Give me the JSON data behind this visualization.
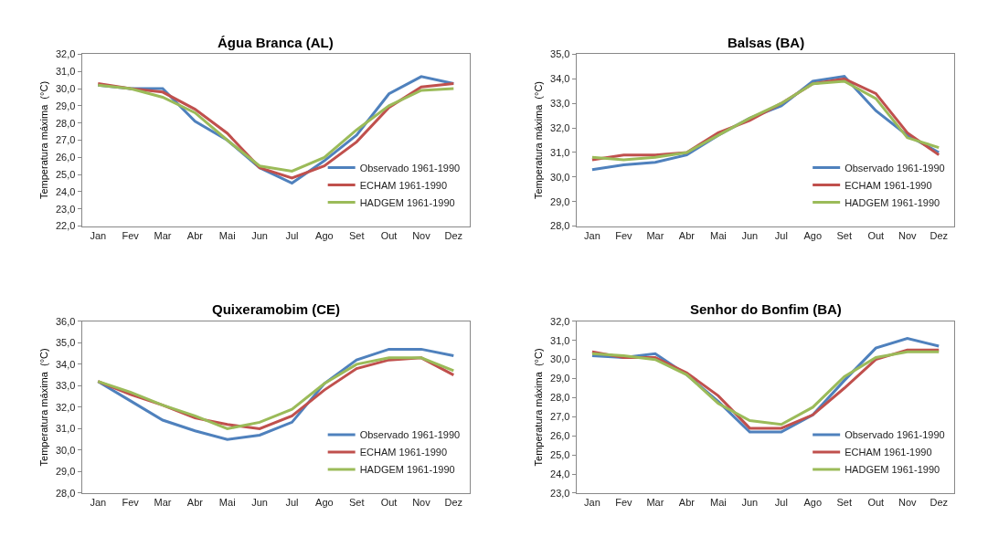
{
  "chart_data": [
    {
      "type": "line",
      "title": "Água Branca (AL)",
      "ylabel": "Temperatura máxima  (°C)",
      "categories": [
        "Jan",
        "Fev",
        "Mar",
        "Abr",
        "Mai",
        "Jun",
        "Jul",
        "Ago",
        "Set",
        "Out",
        "Nov",
        "Dez"
      ],
      "series": [
        {
          "name": "Observado 1961-1990",
          "color": "#4f81bd",
          "values": [
            30.2,
            30.0,
            30.0,
            28.1,
            27.0,
            25.4,
            24.5,
            25.8,
            27.3,
            29.7,
            30.7,
            30.3
          ]
        },
        {
          "name": "ECHAM 1961-1990",
          "color": "#c0504d",
          "values": [
            30.3,
            30.0,
            29.8,
            28.8,
            27.4,
            25.4,
            24.8,
            25.5,
            26.9,
            28.9,
            30.1,
            30.3
          ]
        },
        {
          "name": "HADGEM 1961-1990",
          "color": "#9bbb59",
          "values": [
            30.2,
            30.0,
            29.5,
            28.6,
            27.0,
            25.5,
            25.2,
            26.0,
            27.6,
            29.0,
            29.9,
            30.0
          ]
        }
      ],
      "ylim": [
        22,
        32
      ],
      "yticks": [
        {
          "value": 22,
          "label": "22,0"
        },
        {
          "value": 23,
          "label": "23,0"
        },
        {
          "value": 24,
          "label": "24,0"
        },
        {
          "value": 25,
          "label": "25,0"
        },
        {
          "value": 26,
          "label": "26,0"
        },
        {
          "value": 27,
          "label": "27,0"
        },
        {
          "value": 28,
          "label": "28,0"
        },
        {
          "value": 29,
          "label": "29,0"
        },
        {
          "value": 30,
          "label": "30,0"
        },
        {
          "value": 31,
          "label": "31,0"
        },
        {
          "value": 32,
          "label": "32,0"
        }
      ],
      "legend": "bottom right",
      "marker": "none",
      "line_style": "solid"
    },
    {
      "type": "line",
      "title": "Balsas (BA)",
      "ylabel": "Temperatura máxima  (°C)",
      "categories": [
        "Jan",
        "Fev",
        "Mar",
        "Abr",
        "Mai",
        "Jun",
        "Jul",
        "Ago",
        "Set",
        "Out",
        "Nov",
        "Dez"
      ],
      "series": [
        {
          "name": "Observado 1961-1990",
          "color": "#4f81bd",
          "values": [
            30.3,
            30.5,
            30.6,
            30.9,
            31.7,
            32.4,
            32.9,
            33.9,
            34.1,
            32.7,
            31.7,
            31.0
          ]
        },
        {
          "name": "ECHAM 1961-1990",
          "color": "#c0504d",
          "values": [
            30.7,
            30.9,
            30.9,
            31.0,
            31.8,
            32.3,
            33.0,
            33.8,
            34.0,
            33.4,
            31.8,
            30.9
          ]
        },
        {
          "name": "HADGEM 1961-1990",
          "color": "#9bbb59",
          "values": [
            30.8,
            30.7,
            30.8,
            31.0,
            31.7,
            32.4,
            33.0,
            33.8,
            33.9,
            33.2,
            31.6,
            31.2
          ]
        }
      ],
      "ylim": [
        28,
        35
      ],
      "yticks": [
        {
          "value": 28,
          "label": "28,0"
        },
        {
          "value": 29,
          "label": "29,0"
        },
        {
          "value": 30,
          "label": "30,0"
        },
        {
          "value": 31,
          "label": "31,0"
        },
        {
          "value": 32,
          "label": "32,0"
        },
        {
          "value": 33,
          "label": "33,0"
        },
        {
          "value": 34,
          "label": "34,0"
        },
        {
          "value": 35,
          "label": "35,0"
        }
      ],
      "legend": "bottom right",
      "marker": "none",
      "line_style": "solid"
    },
    {
      "type": "line",
      "title": "Quixeramobim (CE)",
      "ylabel": "Temperatura máxima  (°C)",
      "categories": [
        "Jan",
        "Fev",
        "Mar",
        "Abr",
        "Mai",
        "Jun",
        "Jul",
        "Ago",
        "Set",
        "Out",
        "Nov",
        "Dez"
      ],
      "series": [
        {
          "name": "Observado 1961-1990",
          "color": "#4f81bd",
          "values": [
            33.2,
            32.3,
            31.4,
            30.9,
            30.5,
            30.7,
            31.3,
            33.1,
            34.2,
            34.7,
            34.7,
            34.4
          ]
        },
        {
          "name": "ECHAM 1961-1990",
          "color": "#c0504d",
          "values": [
            33.2,
            32.6,
            32.1,
            31.5,
            31.2,
            31.0,
            31.6,
            32.8,
            33.8,
            34.2,
            34.3,
            33.5
          ]
        },
        {
          "name": "HADGEM 1961-1990",
          "color": "#9bbb59",
          "values": [
            33.2,
            32.7,
            32.1,
            31.6,
            31.0,
            31.3,
            31.9,
            33.1,
            34.0,
            34.3,
            34.3,
            33.7
          ]
        }
      ],
      "ylim": [
        28,
        36
      ],
      "yticks": [
        {
          "value": 28,
          "label": "28,0"
        },
        {
          "value": 29,
          "label": "29,0"
        },
        {
          "value": 30,
          "label": "30,0"
        },
        {
          "value": 31,
          "label": "31,0"
        },
        {
          "value": 32,
          "label": "32,0"
        },
        {
          "value": 33,
          "label": "33,0"
        },
        {
          "value": 34,
          "label": "34,0"
        },
        {
          "value": 35,
          "label": "35,0"
        },
        {
          "value": 36,
          "label": "36,0"
        }
      ],
      "legend": "bottom right",
      "marker": "none",
      "line_style": "solid"
    },
    {
      "type": "line",
      "title": "Senhor do Bonfim (BA)",
      "ylabel": "Temperatura máxima  (°C)",
      "categories": [
        "Jan",
        "Fev",
        "Mar",
        "Abr",
        "Mai",
        "Jun",
        "Jul",
        "Ago",
        "Set",
        "Out",
        "Nov",
        "Dez"
      ],
      "series": [
        {
          "name": "Observado 1961-1990",
          "color": "#4f81bd",
          "values": [
            30.2,
            30.1,
            30.3,
            29.2,
            27.8,
            26.2,
            26.2,
            27.1,
            28.9,
            30.6,
            31.1,
            30.7
          ]
        },
        {
          "name": "ECHAM 1961-1990",
          "color": "#c0504d",
          "values": [
            30.4,
            30.1,
            30.1,
            29.3,
            28.1,
            26.4,
            26.4,
            27.1,
            28.5,
            30.0,
            30.5,
            30.5
          ]
        },
        {
          "name": "HADGEM 1961-1990",
          "color": "#9bbb59",
          "values": [
            30.3,
            30.2,
            30.0,
            29.2,
            27.7,
            26.8,
            26.6,
            27.5,
            29.1,
            30.1,
            30.4,
            30.4
          ]
        }
      ],
      "ylim": [
        23,
        32
      ],
      "yticks": [
        {
          "value": 23,
          "label": "23,0"
        },
        {
          "value": 24,
          "label": "24,0"
        },
        {
          "value": 25,
          "label": "25,0"
        },
        {
          "value": 26,
          "label": "26,0"
        },
        {
          "value": 27,
          "label": "27,0"
        },
        {
          "value": 28,
          "label": "28,0"
        },
        {
          "value": 29,
          "label": "29,0"
        },
        {
          "value": 30,
          "label": "30,0"
        },
        {
          "value": 31,
          "label": "31,0"
        },
        {
          "value": 32,
          "label": "32,0"
        }
      ],
      "legend": "bottom right",
      "marker": "none",
      "line_style": "solid"
    }
  ]
}
